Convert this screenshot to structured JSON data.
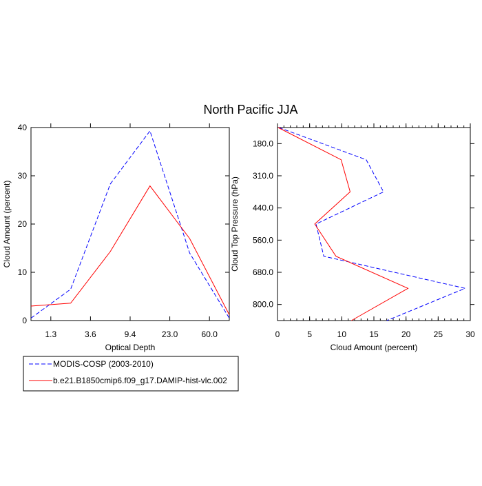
{
  "title": "North Pacific JJA",
  "legend": {
    "placement": "bottom-left",
    "entries": [
      {
        "label": "MODIS-COSP (2003-2010)",
        "color": "#0000ff",
        "style": "dashed"
      },
      {
        "label": "b.e21.B1850cmip6.f09_g17.DAMIP-hist-vlc.002",
        "color": "#ff0000",
        "style": "solid"
      }
    ]
  },
  "chart_data": [
    {
      "type": "line",
      "xlabel": "Optical Depth",
      "ylabel": "Cloud Amount (percent)",
      "x_tick_labels": [
        "1.3",
        "3.6",
        "9.4",
        "23.0",
        "60.0"
      ],
      "y_ticks": [
        "0",
        "10",
        "20",
        "30",
        "40"
      ],
      "ylim": [
        0,
        40
      ],
      "grid": false,
      "series": [
        {
          "name": "MODIS-COSP (2003-2010)",
          "color": "#0000ff",
          "style": "dashed",
          "values": [
            0.5,
            6.5,
            28.3,
            39.3,
            14.0,
            0.5
          ]
        },
        {
          "name": "b.e21.B1850cmip6.f09_g17.DAMIP-hist-vlc.002",
          "color": "#ff0000",
          "style": "solid",
          "values": [
            3.0,
            3.6,
            14.3,
            27.9,
            17.0,
            1.2
          ]
        }
      ]
    },
    {
      "type": "line",
      "xlabel": "Cloud Amount (percent)",
      "ylabel": "Cloud Top Pressure (hPa)",
      "x_ticks": [
        "0",
        "5",
        "10",
        "15",
        "20",
        "25",
        "30"
      ],
      "xlim": [
        0,
        30
      ],
      "y_tick_labels": [
        "180.0",
        "310.0",
        "440.0",
        "560.0",
        "680.0",
        "800.0"
      ],
      "grid": false,
      "series": [
        {
          "name": "MODIS-COSP (2003-2010)",
          "color": "#0000ff",
          "style": "dashed",
          "values": [
            0.2,
            13.8,
            16.5,
            6.0,
            7.2,
            29.2,
            17.0
          ]
        },
        {
          "name": "b.e21.B1850cmip6.f09_g17.DAMIP-hist-vlc.002",
          "color": "#ff0000",
          "style": "solid",
          "values": [
            0.1,
            9.9,
            11.3,
            5.8,
            9.1,
            20.3,
            11.5
          ]
        }
      ]
    }
  ]
}
